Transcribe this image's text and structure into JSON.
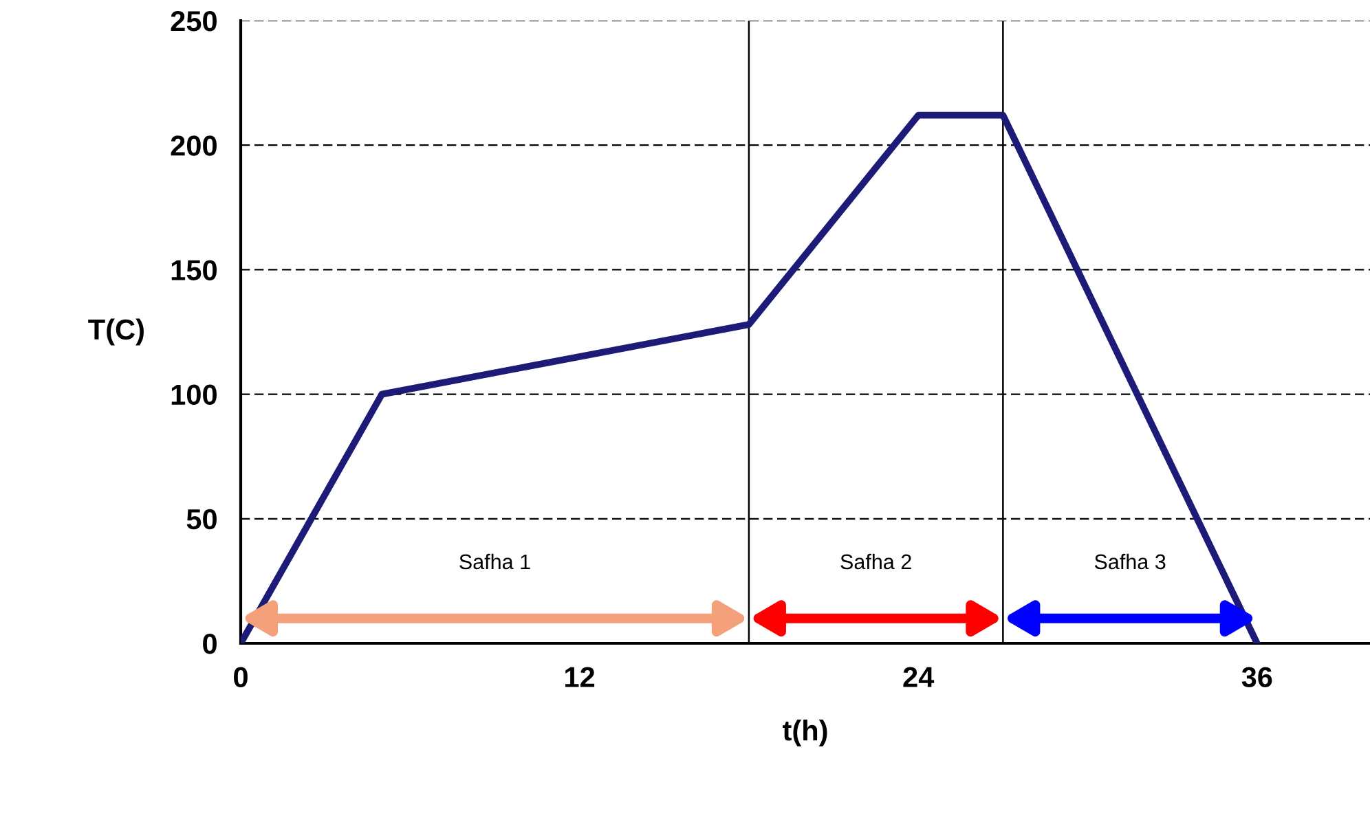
{
  "chart_data": {
    "type": "line",
    "xlabel": "t(h)",
    "ylabel": "T(C)",
    "x": [
      0,
      5,
      18,
      24,
      27,
      36
    ],
    "series": [
      {
        "color": "#1c1c78",
        "values": [
          0,
          100,
          128,
          212,
          212,
          0
        ]
      }
    ],
    "xlim": [
      0,
      40
    ],
    "xticks": [
      0,
      12,
      24,
      36
    ],
    "ylim": [
      0,
      250
    ],
    "yticks": [
      0,
      50,
      100,
      150,
      200,
      250
    ],
    "grid": "y",
    "line_style": "solid",
    "marker": "none",
    "legend": false,
    "ref_lines": [
      {
        "axis": "x",
        "value": 18,
        "color": "#000000"
      },
      {
        "axis": "x",
        "value": 27,
        "color": "#000000"
      }
    ],
    "annotations": [
      "Safha 1",
      "Safha 2",
      "Safha 3"
    ]
  }
}
